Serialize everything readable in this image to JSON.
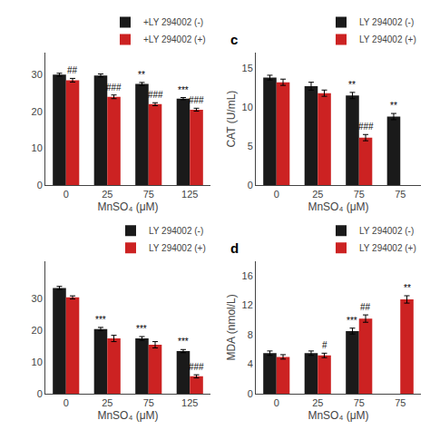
{
  "chart_data": [
    {
      "type": "bar",
      "categories": [
        "0",
        "25",
        "75",
        "125"
      ],
      "series": [
        {
          "name": "+LY 294002 (-)",
          "color": "#1a1a1a",
          "values": [
            30.0,
            29.8,
            27.5,
            23.5
          ],
          "errors": [
            0.4,
            0.4,
            0.4,
            0.3
          ],
          "annotations": [
            null,
            null,
            "**",
            "***"
          ]
        },
        {
          "name": "+LY 294002 (+)",
          "color": "#CC2222",
          "values": [
            28.5,
            24.0,
            22.0,
            20.5
          ],
          "errors": [
            0.5,
            0.5,
            0.4,
            0.4
          ],
          "annotations": [
            "##",
            "###",
            "###",
            "###"
          ]
        }
      ],
      "xlabel": "MnSO₄ (μM)",
      "ylim": [
        0,
        36
      ],
      "yticks": [
        0,
        10,
        20,
        30
      ],
      "grid": false,
      "legend": "upper right"
    },
    {
      "type": "bar",
      "title": "c",
      "categories": [
        "0",
        "25",
        "75",
        "75"
      ],
      "series": [
        {
          "name": "LY 294002 (-)",
          "color": "#1a1a1a",
          "values": [
            13.8,
            12.7,
            11.5,
            8.8
          ],
          "errors": [
            0.3,
            0.5,
            0.4,
            0.4
          ],
          "annotations": [
            null,
            null,
            "**",
            "**"
          ]
        },
        {
          "name": "LY 294002 (+)",
          "color": "#CC2222",
          "values": [
            13.2,
            11.8,
            6.1,
            null
          ],
          "errors": [
            0.4,
            0.4,
            0.4,
            null
          ],
          "annotations": [
            null,
            null,
            "###",
            null
          ]
        }
      ],
      "xlabel": "MnSO₄ (μM)",
      "ylabel": "CAT (U/mL)",
      "ylim": [
        0,
        17
      ],
      "yticks": [
        0,
        5,
        10,
        15
      ],
      "grid": false,
      "legend": "upper right"
    },
    {
      "type": "bar",
      "categories": [
        "0",
        "25",
        "75",
        "125"
      ],
      "series": [
        {
          "name": "LY 294002 (-)",
          "color": "#1a1a1a",
          "values": [
            33.5,
            20.5,
            17.5,
            13.5
          ],
          "errors": [
            0.5,
            0.5,
            0.6,
            0.5
          ],
          "annotations": [
            null,
            "***",
            "***",
            "***"
          ]
        },
        {
          "name": "LY 294002 (+)",
          "color": "#CC2222",
          "values": [
            30.5,
            17.5,
            15.5,
            5.5
          ],
          "errors": [
            0.5,
            1.0,
            1.0,
            0.5
          ],
          "annotations": [
            null,
            null,
            null,
            "###"
          ]
        }
      ],
      "xlabel": "MnSO₄ (μM)",
      "ylim": [
        0,
        42
      ],
      "yticks": [
        0,
        10,
        20,
        30
      ],
      "grid": false,
      "legend": "upper right"
    },
    {
      "type": "bar",
      "title": "d",
      "categories": [
        "0",
        "25",
        "75",
        "75"
      ],
      "series": [
        {
          "name": "LY 294002 (-)",
          "color": "#1a1a1a",
          "values": [
            5.5,
            5.5,
            8.5,
            null
          ],
          "errors": [
            0.3,
            0.3,
            0.4,
            null
          ],
          "annotations": [
            null,
            null,
            "***",
            null
          ]
        },
        {
          "name": "LY 294002 (+)",
          "color": "#CC2222",
          "values": [
            5.0,
            5.2,
            10.2,
            12.8
          ],
          "errors": [
            0.3,
            0.3,
            0.5,
            0.5
          ],
          "annotations": [
            null,
            "#",
            "##",
            "**"
          ]
        }
      ],
      "xlabel": "MnSO₄ (μM)",
      "ylabel": "MDA (nmol/L)",
      "ylim": [
        0,
        18
      ],
      "yticks": [
        0,
        4,
        8,
        12,
        16
      ],
      "grid": false,
      "legend": "upper right"
    }
  ]
}
